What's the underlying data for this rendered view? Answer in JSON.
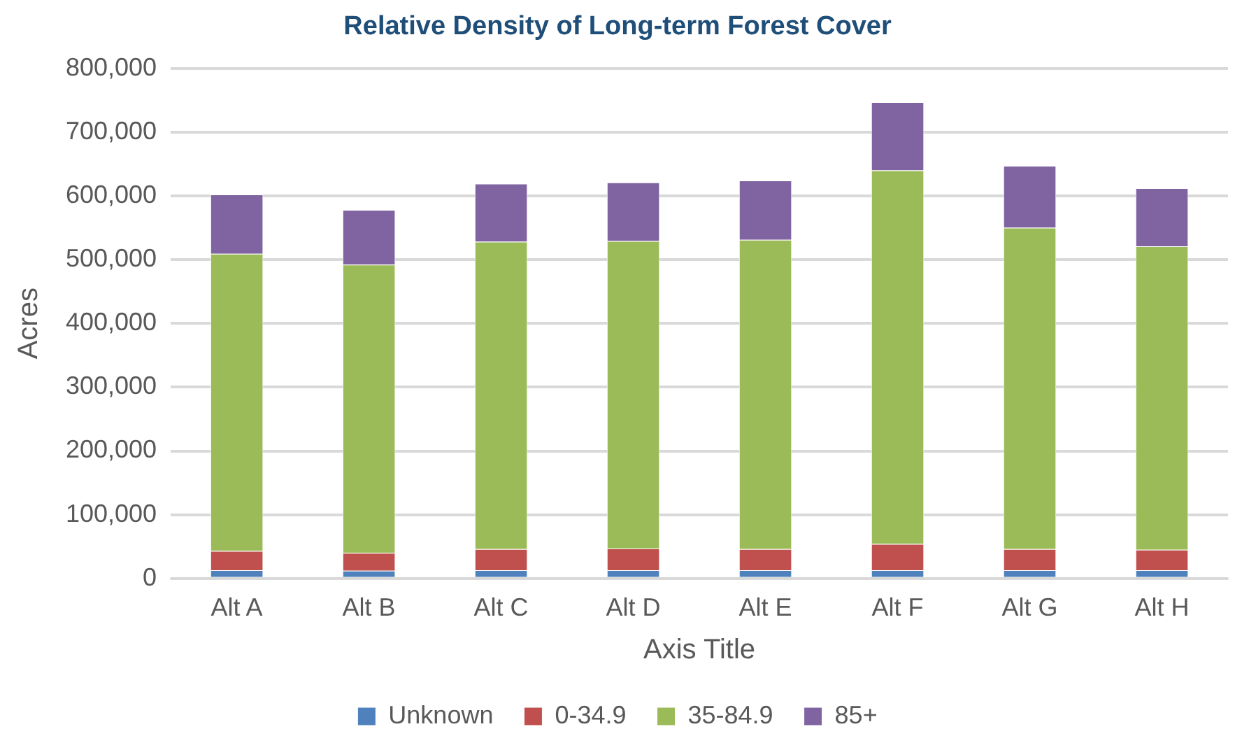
{
  "chart_data": {
    "type": "bar",
    "title": "Relative Density of Long-term Forest Cover",
    "xlabel": "Axis Title",
    "ylabel": "Acres",
    "categories": [
      "Alt A",
      "Alt B",
      "Alt C",
      "Alt D",
      "Alt E",
      "Alt F",
      "Alt G",
      "Alt H"
    ],
    "stacked": true,
    "series": [
      {
        "name": "Unknown",
        "color": "#4f81bd",
        "values": [
          13000,
          12000,
          13000,
          13000,
          13000,
          13000,
          13000,
          13000
        ]
      },
      {
        "name": "0-34.9",
        "color": "#c0504d",
        "values": [
          30000,
          28000,
          33000,
          34000,
          33000,
          41000,
          33000,
          32000
        ]
      },
      {
        "name": "35-84.9",
        "color": "#9bbb59",
        "values": [
          466000,
          452000,
          482000,
          482000,
          485000,
          586000,
          504000,
          476000
        ]
      },
      {
        "name": "85+",
        "color": "#8064a2",
        "values": [
          93000,
          86000,
          91000,
          92000,
          93000,
          107000,
          97000,
          91000
        ]
      }
    ],
    "ylim": [
      0,
      800000
    ],
    "yticks": [
      0,
      {
        "value": 100000,
        "label": "100,000"
      },
      {
        "value": 200000,
        "label": "200,000"
      },
      {
        "value": 300000,
        "label": "300,000"
      },
      {
        "value": 400000,
        "label": "400,000"
      },
      {
        "value": 500000,
        "label": "500,000"
      },
      {
        "value": 600000,
        "label": "600,000"
      },
      {
        "value": 700000,
        "label": "700,000"
      },
      {
        "value": 800000,
        "label": "800,000"
      }
    ],
    "grid": "y",
    "legend": "bottom"
  }
}
